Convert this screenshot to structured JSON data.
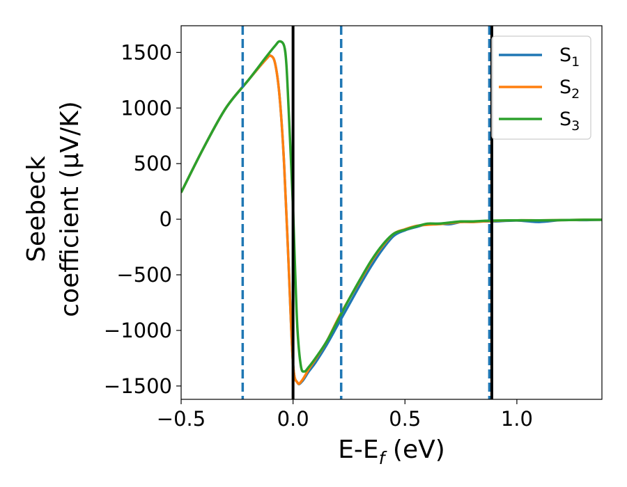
{
  "chart_data": {
    "type": "line",
    "title": "",
    "xlabel": {
      "main": "E-E",
      "sub": "f",
      "tail": " (eV)"
    },
    "ylabel": {
      "line1": "Seebeck",
      "line2": "coefficient  (μV/K)"
    },
    "xlim": [
      -0.5,
      1.38
    ],
    "ylim": [
      -1620,
      1740
    ],
    "x_ticks": [
      {
        "value": -0.5,
        "label": "−0.5"
      },
      {
        "value": 0.0,
        "label": "0.0"
      },
      {
        "value": 0.5,
        "label": "0.5"
      },
      {
        "value": 1.0,
        "label": "1.0"
      }
    ],
    "y_ticks": [
      {
        "value": 1500,
        "label": "1500"
      },
      {
        "value": 1000,
        "label": "1000"
      },
      {
        "value": 500,
        "label": "500"
      },
      {
        "value": 0,
        "label": "0"
      },
      {
        "value": -500,
        "label": "−500"
      },
      {
        "value": -1000,
        "label": "−1000"
      },
      {
        "value": -1500,
        "label": "−1500"
      }
    ],
    "legend": {
      "placement": "top-right"
    },
    "series": [
      {
        "name": "S",
        "sub": "1",
        "color": "#1f77b4",
        "points": [
          [
            -0.5,
            240
          ],
          [
            -0.4,
            640
          ],
          [
            -0.3,
            1000
          ],
          [
            -0.2,
            1250
          ],
          [
            -0.12,
            1440
          ],
          [
            -0.1,
            1470
          ],
          [
            -0.08,
            1400
          ],
          [
            -0.06,
            1100
          ],
          [
            -0.04,
            500
          ],
          [
            -0.02,
            -400
          ],
          [
            0.0,
            -1300
          ],
          [
            0.02,
            -1470
          ],
          [
            0.04,
            -1460
          ],
          [
            0.07,
            -1370
          ],
          [
            0.1,
            -1290
          ],
          [
            0.15,
            -1130
          ],
          [
            0.2,
            -950
          ],
          [
            0.25,
            -770
          ],
          [
            0.3,
            -590
          ],
          [
            0.35,
            -420
          ],
          [
            0.4,
            -270
          ],
          [
            0.45,
            -150
          ],
          [
            0.5,
            -100
          ],
          [
            0.55,
            -70
          ],
          [
            0.6,
            -45
          ],
          [
            0.65,
            -40
          ],
          [
            0.7,
            -45
          ],
          [
            0.75,
            -25
          ],
          [
            0.8,
            -25
          ],
          [
            0.85,
            -20
          ],
          [
            0.9,
            -20
          ],
          [
            1.0,
            -12
          ],
          [
            1.1,
            -25
          ],
          [
            1.2,
            -8
          ],
          [
            1.3,
            -8
          ],
          [
            1.38,
            -5
          ]
        ]
      },
      {
        "name": "S",
        "sub": "2",
        "color": "#ff7f0e",
        "points": [
          [
            -0.5,
            240
          ],
          [
            -0.4,
            640
          ],
          [
            -0.3,
            1000
          ],
          [
            -0.2,
            1250
          ],
          [
            -0.12,
            1440
          ],
          [
            -0.1,
            1470
          ],
          [
            -0.08,
            1400
          ],
          [
            -0.06,
            1100
          ],
          [
            -0.04,
            500
          ],
          [
            -0.02,
            -400
          ],
          [
            0.0,
            -1300
          ],
          [
            0.02,
            -1470
          ],
          [
            0.04,
            -1450
          ],
          [
            0.07,
            -1350
          ],
          [
            0.1,
            -1260
          ],
          [
            0.15,
            -1100
          ],
          [
            0.2,
            -900
          ],
          [
            0.25,
            -720
          ],
          [
            0.3,
            -550
          ],
          [
            0.35,
            -380
          ],
          [
            0.4,
            -240
          ],
          [
            0.45,
            -130
          ],
          [
            0.5,
            -90
          ],
          [
            0.55,
            -60
          ],
          [
            0.6,
            -50
          ],
          [
            0.65,
            -45
          ],
          [
            0.7,
            -35
          ],
          [
            0.75,
            -25
          ],
          [
            0.8,
            -25
          ],
          [
            0.85,
            -20
          ],
          [
            0.9,
            -15
          ],
          [
            1.0,
            -10
          ],
          [
            1.1,
            -10
          ],
          [
            1.2,
            -8
          ],
          [
            1.3,
            -5
          ],
          [
            1.38,
            -5
          ]
        ]
      },
      {
        "name": "S",
        "sub": "3",
        "color": "#2ca02c",
        "points": [
          [
            -0.5,
            240
          ],
          [
            -0.4,
            640
          ],
          [
            -0.3,
            1000
          ],
          [
            -0.2,
            1250
          ],
          [
            -0.12,
            1460
          ],
          [
            -0.08,
            1560
          ],
          [
            -0.06,
            1600
          ],
          [
            -0.04,
            1560
          ],
          [
            -0.03,
            1400
          ],
          [
            -0.02,
            1000
          ],
          [
            0.0,
            100
          ],
          [
            0.01,
            -500
          ],
          [
            0.02,
            -1000
          ],
          [
            0.035,
            -1320
          ],
          [
            0.05,
            -1370
          ],
          [
            0.07,
            -1330
          ],
          [
            0.1,
            -1250
          ],
          [
            0.15,
            -1100
          ],
          [
            0.2,
            -910
          ],
          [
            0.25,
            -720
          ],
          [
            0.3,
            -540
          ],
          [
            0.35,
            -370
          ],
          [
            0.4,
            -230
          ],
          [
            0.45,
            -130
          ],
          [
            0.5,
            -95
          ],
          [
            0.55,
            -65
          ],
          [
            0.6,
            -40
          ],
          [
            0.65,
            -40
          ],
          [
            0.7,
            -30
          ],
          [
            0.75,
            -20
          ],
          [
            0.8,
            -20
          ],
          [
            0.85,
            -15
          ],
          [
            0.9,
            -12
          ],
          [
            1.0,
            -10
          ],
          [
            1.1,
            -10
          ],
          [
            1.2,
            -8
          ],
          [
            1.3,
            -5
          ],
          [
            1.38,
            -5
          ]
        ]
      }
    ],
    "vlines": [
      {
        "x": -0.225,
        "style": "dashed",
        "color": "#1f77b4"
      },
      {
        "x": 0.215,
        "style": "dashed",
        "color": "#1f77b4"
      },
      {
        "x": 0.877,
        "style": "dashed",
        "color": "#1f77b4"
      },
      {
        "x": 0.0,
        "style": "solid",
        "color": "#000000"
      },
      {
        "x": 0.888,
        "style": "solid",
        "color": "#000000"
      }
    ]
  }
}
